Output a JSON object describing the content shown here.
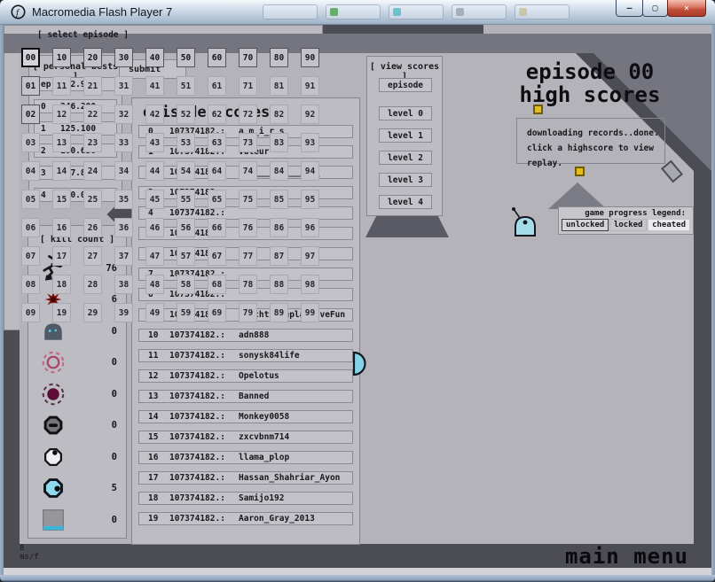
{
  "titlebar": {
    "title": "Macromedia Flash Player 7",
    "minimize_label": "—",
    "maximize_label": "▢",
    "close_label": "✕"
  },
  "personal_bests": {
    "header": "[ personal bests ]",
    "submit_label": "submit",
    "rows": [
      {
        "label": "ep",
        "value": "312.900"
      },
      {
        "label": "0",
        "value": "246.200"
      },
      {
        "label": "1",
        "value": "125.100"
      },
      {
        "label": "2",
        "value": "100.650"
      },
      {
        "label": "3",
        "value": "107.850"
      },
      {
        "label": "4",
        "value": "100.000"
      }
    ]
  },
  "episode_scores": {
    "title": "episode scores",
    "score_text": "107374182.:",
    "rows": [
      {
        "rank": "0",
        "name": "a_m_i_r_s"
      },
      {
        "rank": "1",
        "name": "Vuteur"
      },
      {
        "rank": "2",
        "name": "________________"
      },
      {
        "rank": "3",
        "name": ""
      },
      {
        "rank": "4",
        "name": ""
      },
      {
        "rank": "5",
        "name": "n"
      },
      {
        "rank": "6",
        "name": ""
      },
      {
        "rank": "7",
        "name": ""
      },
      {
        "rank": "8",
        "name": ""
      },
      {
        "rank": "9",
        "name": "WatchtheReplayHaveFun"
      },
      {
        "rank": "10",
        "name": "adn888"
      },
      {
        "rank": "11",
        "name": "sonysk84life"
      },
      {
        "rank": "12",
        "name": "Opelotus"
      },
      {
        "rank": "13",
        "name": "Banned"
      },
      {
        "rank": "14",
        "name": "Monkey0058"
      },
      {
        "rank": "15",
        "name": "zxcvbnm714"
      },
      {
        "rank": "16",
        "name": "llama_plop"
      },
      {
        "rank": "17",
        "name": "Hassan_Shahriar_Ayon"
      },
      {
        "rank": "18",
        "name": "Samijo192"
      },
      {
        "rank": "19",
        "name": "Aaron_Gray_2013"
      }
    ]
  },
  "view_scores": {
    "header": "[ view scores ]",
    "episode_button": "episode",
    "level_buttons": [
      "level 0",
      "level 1",
      "level 2",
      "level 3",
      "level 4"
    ]
  },
  "high_scores_panel": {
    "title_line1": "episode 00",
    "title_line2": "high scores",
    "status_line1": "downloading records..done.",
    "status_line2": "click a highscore to view replay."
  },
  "legend": {
    "title": "game progress legend:",
    "items": [
      {
        "label": "unlocked",
        "state": "unlocked"
      },
      {
        "label": "locked",
        "state": "locked"
      },
      {
        "label": "cheated",
        "state": "cheated"
      }
    ]
  },
  "kill_count": {
    "header": "[ kill count ]",
    "rows": [
      {
        "icon": "ninja-icon",
        "count": "76"
      },
      {
        "icon": "mine-icon",
        "count": "6"
      },
      {
        "icon": "turret-icon",
        "count": "0"
      },
      {
        "icon": "gauss-drone-icon",
        "count": "0"
      },
      {
        "icon": "laser-drone-icon",
        "count": "0"
      },
      {
        "icon": "chaingun-drone-icon",
        "count": "0"
      },
      {
        "icon": "seeker-drone-icon",
        "count": "0"
      },
      {
        "icon": "chaser-drone-icon",
        "count": "5"
      },
      {
        "icon": "thwump-icon",
        "count": "0"
      }
    ]
  },
  "select_episode": {
    "header": "[ select episode ]",
    "selected": "00",
    "unlocked": [
      "01",
      "02",
      "10",
      "20",
      "30",
      "40",
      "50",
      "60",
      "70",
      "80",
      "90"
    ],
    "cells": [
      "00",
      "10",
      "20",
      "30",
      "40",
      "50",
      "60",
      "70",
      "80",
      "90",
      "01",
      "11",
      "21",
      "31",
      "41",
      "51",
      "61",
      "71",
      "81",
      "91",
      "02",
      "12",
      "22",
      "32",
      "42",
      "52",
      "62",
      "72",
      "82",
      "92",
      "03",
      "13",
      "23",
      "33",
      "43",
      "53",
      "63",
      "73",
      "83",
      "93",
      "04",
      "14",
      "24",
      "34",
      "44",
      "54",
      "64",
      "74",
      "84",
      "94",
      "05",
      "15",
      "25",
      "35",
      "45",
      "55",
      "65",
      "75",
      "85",
      "95",
      "06",
      "16",
      "26",
      "36",
      "46",
      "56",
      "66",
      "76",
      "86",
      "96",
      "07",
      "17",
      "27",
      "37",
      "47",
      "57",
      "67",
      "77",
      "87",
      "97",
      "08",
      "18",
      "28",
      "38",
      "48",
      "58",
      "68",
      "78",
      "88",
      "98",
      "09",
      "19",
      "29",
      "39",
      "49",
      "59",
      "69",
      "79",
      "89",
      "99"
    ]
  },
  "footer": {
    "main_menu_label": "main menu",
    "frame_ms_value": "8",
    "frame_ms_unit": "ms/f"
  },
  "colors": {
    "stage_dark": "#4c4c55",
    "panel": "#bcbcc2",
    "content": "#b3b3b9",
    "accent_gold": "#e4bd1c",
    "accent_cyan": "#8ed9ec"
  }
}
